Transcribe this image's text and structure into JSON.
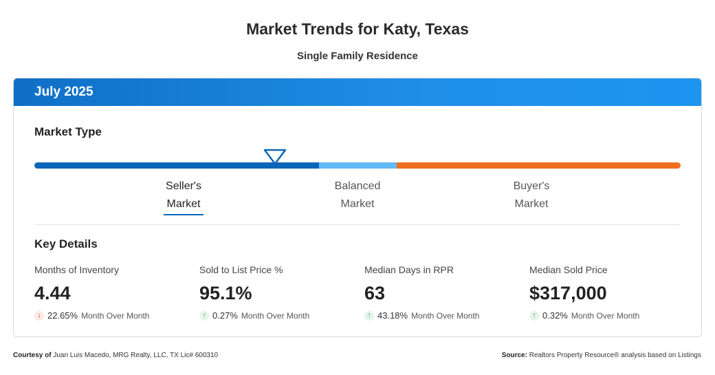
{
  "header": {
    "title": "Market Trends for Katy, Texas",
    "subtitle": "Single Family Residence"
  },
  "card": {
    "period": "July 2025",
    "market_type_title": "Market Type",
    "market_indicator_position": 0.372,
    "segments": [
      {
        "line1": "Seller's",
        "line2": "Market",
        "active": true,
        "color": "#0a66b8"
      },
      {
        "line1": "Balanced",
        "line2": "Market",
        "active": false,
        "color": "#63b9f5"
      },
      {
        "line1": "Buyer's",
        "line2": "Market",
        "active": false,
        "color": "#ee6f1f"
      }
    ],
    "key_details_title": "Key Details",
    "stats": [
      {
        "label": "Months of Inventory",
        "value": "4.44",
        "direction": "down",
        "change": "22.65%",
        "period": "Month Over Month"
      },
      {
        "label": "Sold to List Price %",
        "value": "95.1%",
        "direction": "up",
        "change": "0.27%",
        "period": "Month Over Month"
      },
      {
        "label": "Median Days in RPR",
        "value": "63",
        "direction": "up",
        "change": "43.18%",
        "period": "Month Over Month"
      },
      {
        "label": "Median Sold Price",
        "value": "$317,000",
        "direction": "up",
        "change": "0.32%",
        "period": "Month Over Month"
      }
    ]
  },
  "footer": {
    "courtesy_label": "Courtesy of",
    "courtesy_text": "Juan Luis Macedo, MRG Realty, LLC, TX Lic# 600310",
    "source_label": "Source:",
    "source_text": "Realtors Property Resource® analysis based on Listings"
  }
}
